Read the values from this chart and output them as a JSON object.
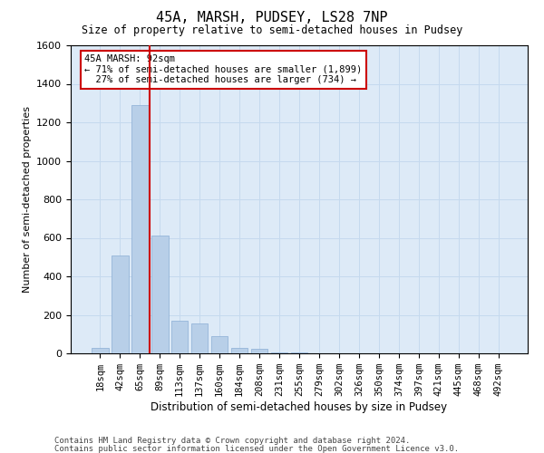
{
  "title": "45A, MARSH, PUDSEY, LS28 7NP",
  "subtitle": "Size of property relative to semi-detached houses in Pudsey",
  "xlabel": "Distribution of semi-detached houses by size in Pudsey",
  "ylabel": "Number of semi-detached properties",
  "footnote1": "Contains HM Land Registry data © Crown copyright and database right 2024.",
  "footnote2": "Contains public sector information licensed under the Open Government Licence v3.0.",
  "bin_labels": [
    "18sqm",
    "42sqm",
    "65sqm",
    "89sqm",
    "113sqm",
    "137sqm",
    "160sqm",
    "184sqm",
    "208sqm",
    "231sqm",
    "255sqm",
    "279sqm",
    "302sqm",
    "326sqm",
    "350sqm",
    "374sqm",
    "397sqm",
    "421sqm",
    "445sqm",
    "468sqm",
    "492sqm"
  ],
  "bar_values": [
    30,
    510,
    1290,
    610,
    170,
    155,
    90,
    30,
    25,
    5,
    3,
    1,
    1,
    0,
    0,
    0,
    0,
    0,
    0,
    0,
    0
  ],
  "bar_color": "#b8cfe8",
  "bar_edge_color": "#8aadd4",
  "grid_color": "#c5d9ee",
  "background_color": "#ddeaf7",
  "ylim": [
    0,
    1600
  ],
  "yticks": [
    0,
    200,
    400,
    600,
    800,
    1000,
    1200,
    1400,
    1600
  ],
  "vline_x": 2.5,
  "vline_color": "#cc0000",
  "annotation_line1": "45A MARSH: 92sqm",
  "annotation_line2": "← 71% of semi-detached houses are smaller (1,899)",
  "annotation_line3": "  27% of semi-detached houses are larger (734) →",
  "annotation_box_color": "#cc0000"
}
